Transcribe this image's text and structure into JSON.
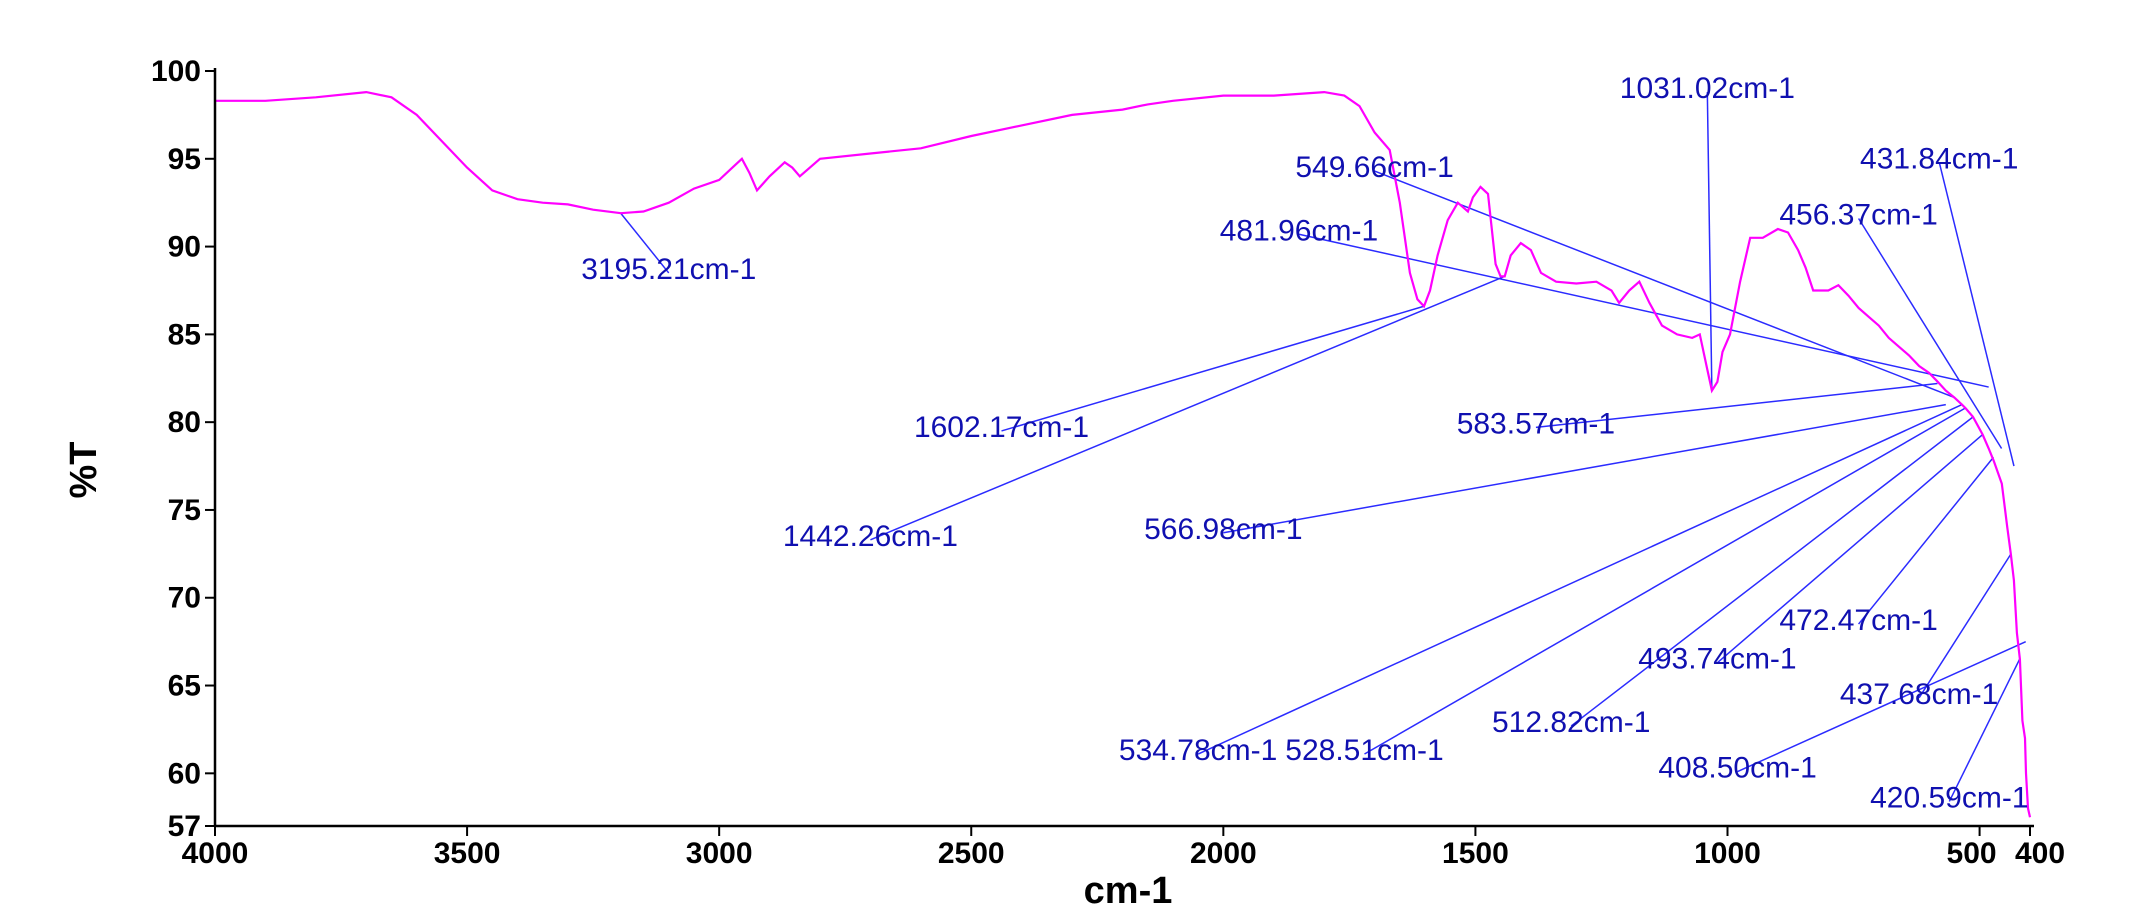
{
  "chart_data": {
    "type": "line",
    "xlabel": "cm-1",
    "ylabel": "%T",
    "xlim": [
      4000,
      400
    ],
    "ylim": [
      57,
      100
    ],
    "x_reversed": true,
    "grid": false,
    "x_ticks": [
      "4000",
      "3500",
      "3000",
      "2500",
      "2000",
      "1500",
      "1000",
      "500",
      "400"
    ],
    "y_ticks": [
      "100",
      "95",
      "90",
      "85",
      "80",
      "75",
      "70",
      "65",
      "60",
      "57"
    ],
    "series": [
      {
        "color": "#ff00ff",
        "points": [
          [
            4000,
            98.3
          ],
          [
            3900,
            98.3
          ],
          [
            3800,
            98.5
          ],
          [
            3700,
            98.8
          ],
          [
            3650,
            98.5
          ],
          [
            3600,
            97.5
          ],
          [
            3550,
            96.0
          ],
          [
            3500,
            94.5
          ],
          [
            3450,
            93.2
          ],
          [
            3400,
            92.7
          ],
          [
            3350,
            92.5
          ],
          [
            3300,
            92.4
          ],
          [
            3250,
            92.1
          ],
          [
            3195,
            91.9
          ],
          [
            3150,
            92.0
          ],
          [
            3100,
            92.5
          ],
          [
            3050,
            93.3
          ],
          [
            3000,
            93.8
          ],
          [
            2970,
            94.6
          ],
          [
            2955,
            95.0
          ],
          [
            2940,
            94.2
          ],
          [
            2925,
            93.2
          ],
          [
            2900,
            94.0
          ],
          [
            2870,
            94.8
          ],
          [
            2855,
            94.5
          ],
          [
            2840,
            94.0
          ],
          [
            2800,
            95.0
          ],
          [
            2700,
            95.3
          ],
          [
            2600,
            95.6
          ],
          [
            2500,
            96.3
          ],
          [
            2400,
            96.9
          ],
          [
            2300,
            97.5
          ],
          [
            2200,
            97.8
          ],
          [
            2150,
            98.1
          ],
          [
            2100,
            98.3
          ],
          [
            2000,
            98.6
          ],
          [
            1900,
            98.6
          ],
          [
            1800,
            98.8
          ],
          [
            1760,
            98.6
          ],
          [
            1730,
            98.0
          ],
          [
            1700,
            96.5
          ],
          [
            1670,
            95.5
          ],
          [
            1650,
            92.5
          ],
          [
            1630,
            88.5
          ],
          [
            1615,
            87.0
          ],
          [
            1602,
            86.6
          ],
          [
            1590,
            87.5
          ],
          [
            1575,
            89.5
          ],
          [
            1555,
            91.5
          ],
          [
            1535,
            92.5
          ],
          [
            1515,
            92.0
          ],
          [
            1505,
            92.8
          ],
          [
            1490,
            93.4
          ],
          [
            1475,
            93.0
          ],
          [
            1460,
            89.0
          ],
          [
            1450,
            88.3
          ],
          [
            1442,
            88.3
          ],
          [
            1430,
            89.5
          ],
          [
            1410,
            90.2
          ],
          [
            1390,
            89.8
          ],
          [
            1370,
            88.5
          ],
          [
            1340,
            88.0
          ],
          [
            1300,
            87.9
          ],
          [
            1260,
            88.0
          ],
          [
            1230,
            87.5
          ],
          [
            1215,
            86.8
          ],
          [
            1195,
            87.5
          ],
          [
            1175,
            88.0
          ],
          [
            1155,
            86.8
          ],
          [
            1130,
            85.5
          ],
          [
            1100,
            85.0
          ],
          [
            1070,
            84.8
          ],
          [
            1055,
            85.0
          ],
          [
            1040,
            83.0
          ],
          [
            1031,
            81.8
          ],
          [
            1020,
            82.3
          ],
          [
            1010,
            84.0
          ],
          [
            995,
            85.0
          ],
          [
            975,
            88.0
          ],
          [
            955,
            90.5
          ],
          [
            930,
            90.5
          ],
          [
            900,
            91.0
          ],
          [
            880,
            90.8
          ],
          [
            860,
            89.8
          ],
          [
            845,
            88.8
          ],
          [
            830,
            87.5
          ],
          [
            800,
            87.5
          ],
          [
            780,
            87.8
          ],
          [
            760,
            87.2
          ],
          [
            740,
            86.5
          ],
          [
            720,
            86.0
          ],
          [
            700,
            85.5
          ],
          [
            680,
            84.8
          ],
          [
            660,
            84.3
          ],
          [
            640,
            83.8
          ],
          [
            620,
            83.2
          ],
          [
            600,
            82.8
          ],
          [
            583,
            82.3
          ],
          [
            567,
            81.8
          ],
          [
            550,
            81.4
          ],
          [
            535,
            81.0
          ],
          [
            528,
            80.8
          ],
          [
            513,
            80.3
          ],
          [
            494,
            79.3
          ],
          [
            482,
            78.5
          ],
          [
            472,
            77.8
          ],
          [
            456,
            76.5
          ],
          [
            445,
            74.0
          ],
          [
            438,
            72.5
          ],
          [
            432,
            71.0
          ],
          [
            426,
            68.0
          ],
          [
            420,
            66.5
          ],
          [
            415,
            63.0
          ],
          [
            410,
            62.0
          ],
          [
            408,
            60.0
          ],
          [
            404,
            58.0
          ],
          [
            400,
            57.5
          ]
        ]
      }
    ],
    "peaks": [
      {
        "label": "3195.21cm-1",
        "x": 3195.21,
        "y": 91.9,
        "tx": 3100,
        "ty": 88.5
      },
      {
        "label": "1602.17cm-1",
        "x": 1602.17,
        "y": 86.6,
        "tx": 2440,
        "ty": 79.5
      },
      {
        "label": "1442.26cm-1",
        "x": 1442.26,
        "y": 88.3,
        "tx": 2700,
        "ty": 73.3
      },
      {
        "label": "481.96cm-1",
        "x": 481.96,
        "y": 82.0,
        "tx": 1850,
        "ty": 90.7
      },
      {
        "label": "549.66cm-1",
        "x": 549.66,
        "y": 81.4,
        "tx": 1700,
        "ty": 94.3
      },
      {
        "label": "1031.02cm-1",
        "x": 1031.02,
        "y": 81.8,
        "tx": 1040,
        "ty": 98.8
      },
      {
        "label": "431.84cm-1",
        "x": 431.84,
        "y": 77.5,
        "tx": 580,
        "ty": 94.8
      },
      {
        "label": "456.37cm-1",
        "x": 456.37,
        "y": 78.5,
        "tx": 740,
        "ty": 91.6
      },
      {
        "label": "583.57cm-1",
        "x": 583.57,
        "y": 82.2,
        "tx": 1380,
        "ty": 79.7
      },
      {
        "label": "566.98cm-1",
        "x": 566.98,
        "y": 81.0,
        "tx": 2000,
        "ty": 73.7
      },
      {
        "label": "534.78cm-1",
        "x": 534.78,
        "y": 81.0,
        "tx": 2050,
        "ty": 61.1
      },
      {
        "label": "528.51cm-1",
        "x": 528.51,
        "y": 80.8,
        "tx": 1720,
        "ty": 61.1
      },
      {
        "label": "512.82cm-1",
        "x": 512.82,
        "y": 80.3,
        "tx": 1310,
        "ty": 62.7
      },
      {
        "label": "493.74cm-1",
        "x": 493.74,
        "y": 79.3,
        "tx": 1020,
        "ty": 66.3
      },
      {
        "label": "472.47cm-1",
        "x": 472.47,
        "y": 78.0,
        "tx": 740,
        "ty": 68.5
      },
      {
        "label": "437.68cm-1",
        "x": 437.68,
        "y": 72.5,
        "tx": 620,
        "ty": 64.3
      },
      {
        "label": "408.50cm-1",
        "x": 408.5,
        "y": 67.5,
        "tx": 980,
        "ty": 60.1
      },
      {
        "label": "420.59cm-1",
        "x": 420.59,
        "y": 66.5,
        "tx": 560,
        "ty": 58.4
      }
    ]
  }
}
